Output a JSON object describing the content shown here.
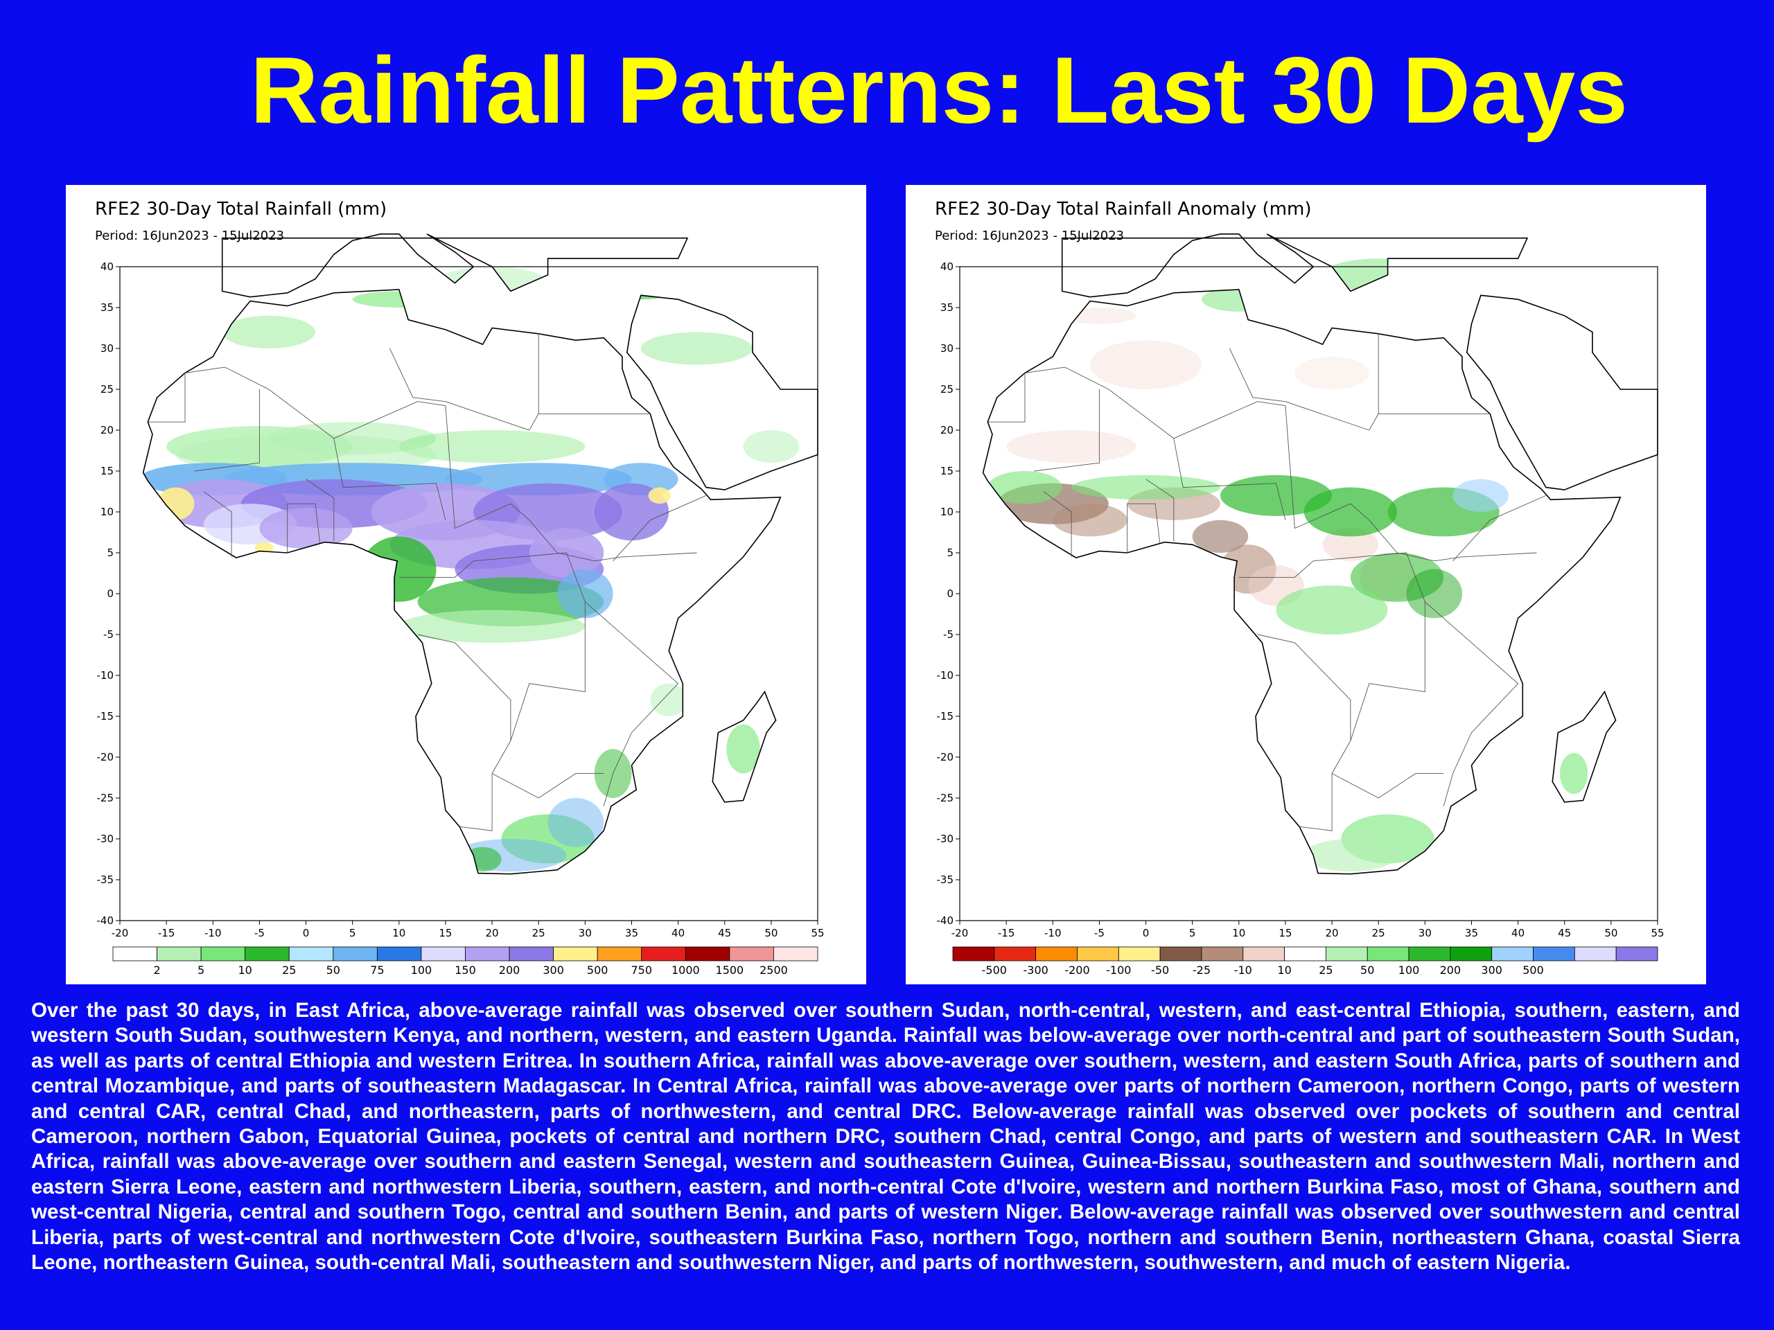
{
  "slide": {
    "title": "Rainfall Patterns: Last 30 Days",
    "background_color": "#0a0af0",
    "title_color": "#ffff00"
  },
  "maps": [
    {
      "title": "RFE2 30-Day Total Rainfall (mm)",
      "period": "Period: 16Jun2023 - 15Jul2023",
      "lat_ticks": [
        "40",
        "35",
        "30",
        "25",
        "20",
        "15",
        "10",
        "5",
        "0",
        "-5",
        "-10",
        "-15",
        "-20",
        "-25",
        "-30",
        "-35",
        "-40"
      ],
      "lon_ticks": [
        "-20",
        "-15",
        "-10",
        "-5",
        "0",
        "5",
        "10",
        "15",
        "20",
        "25",
        "30",
        "35",
        "40",
        "45",
        "50",
        "55"
      ],
      "legend": {
        "colors": [
          "#ffffff",
          "#b4f0b4",
          "#78e678",
          "#2db92d",
          "#b4e6ff",
          "#6eb4f0",
          "#2878e6",
          "#dcdcff",
          "#b4a0f0",
          "#8c78e6",
          "#fff08c",
          "#ffa01e",
          "#e61e1e",
          "#a00000",
          "#f09696",
          "#ffe6e6"
        ],
        "labels": [
          "2",
          "5",
          "10",
          "25",
          "50",
          "75",
          "100",
          "150",
          "200",
          "300",
          "500",
          "750",
          "1000",
          "1500",
          "2500"
        ]
      }
    },
    {
      "title": "RFE2 30-Day Total Rainfall Anomaly (mm)",
      "period": "Period: 16Jun2023 - 15Jul2023",
      "lat_ticks": [
        "40",
        "35",
        "30",
        "25",
        "20",
        "15",
        "10",
        "5",
        "0",
        "-5",
        "-10",
        "-15",
        "-20",
        "-25",
        "-30",
        "-35",
        "-40"
      ],
      "lon_ticks": [
        "-20",
        "-15",
        "-10",
        "-5",
        "0",
        "5",
        "10",
        "15",
        "20",
        "25",
        "30",
        "35",
        "40",
        "45",
        "50",
        "55"
      ],
      "legend": {
        "colors": [
          "#aa0000",
          "#e62814",
          "#ff8c00",
          "#ffc846",
          "#fff08c",
          "#825a46",
          "#b48c78",
          "#f0d2c8",
          "#ffffff",
          "#b4f0b4",
          "#78e678",
          "#2db92d",
          "#0fa00f",
          "#a0d2ff",
          "#468cf0",
          "#dcdcff",
          "#8c78e6"
        ],
        "labels": [
          "-500",
          "-300",
          "-200",
          "-100",
          "-50",
          "-25",
          "-10",
          "10",
          "25",
          "50",
          "100",
          "200",
          "300",
          "500"
        ]
      }
    }
  ],
  "summary": "Over the past 30 days, in East Africa, above-average rainfall was observed over southern Sudan, north-central, western, and east-central Ethiopia, southern, eastern, and western South Sudan, southwestern Kenya, and northern, western, and eastern Uganda. Rainfall was below-average over north-central and part of southeastern South Sudan, as well as parts of central Ethiopia and western Eritrea. In southern Africa, rainfall was above-average over southern, western, and eastern South Africa, parts of southern and central Mozambique, and parts of southeastern Madagascar. In Central Africa, rainfall was above-average over parts of northern Cameroon, northern Congo, parts of western and central CAR, central Chad, and northeastern, parts of northwestern, and central DRC. Below-average rainfall was observed over pockets of southern and central Cameroon, northern Gabon, Equatorial Guinea, pockets of central and northern DRC, southern Chad, central Congo, and parts of western and southeastern CAR. In West Africa, rainfall was above-average over southern and eastern Senegal, western and southeastern Guinea, Guinea-Bissau, southeastern and southwestern Mali, northern and eastern Sierra Leone, eastern and northwestern Liberia, southern, eastern, and north-central Cote d'Ivoire, western and northern Burkina Faso, most of Ghana, southern and west-central Nigeria, central and southern Togo, central and southern Benin, and parts of western Niger. Below-average rainfall was observed over southwestern and central Liberia, parts of west-central and northwestern Cote d'Ivoire, southeastern Burkina Faso, northern Togo, northern and southern Benin, northeastern Ghana, coastal Sierra Leone, northeastern Guinea, south-central Mali, southeastern and southwestern Niger, and parts of northwestern, southwestern, and much of eastern Nigeria."
}
